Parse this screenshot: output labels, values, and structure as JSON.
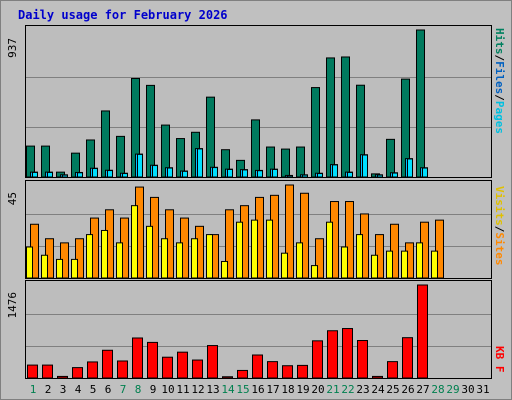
{
  "title": "Daily usage for February 2026",
  "colors": {
    "background": "#bdbdbd",
    "title": "#0000cc",
    "hits": "#007a5e",
    "files": "#00c0ff",
    "pages": "#00e0ff",
    "visits": "#ffff00",
    "sites": "#ff8800",
    "kbytes": "#ff0000",
    "weekend_label": "#00804f",
    "weekday_label": "#000000"
  },
  "legends": {
    "top": [
      {
        "text": "Hits",
        "color": "#00805f"
      },
      {
        "text": "/",
        "color": "#000000"
      },
      {
        "text": "Files",
        "color": "#0060c0"
      },
      {
        "text": "/",
        "color": "#000000"
      },
      {
        "text": "Pages",
        "color": "#00c0e0"
      }
    ],
    "middle": [
      {
        "text": "Visits",
        "color": "#e0c000"
      },
      {
        "text": "/",
        "color": "#000000"
      },
      {
        "text": "Sites",
        "color": "#ff8800"
      }
    ],
    "bottom": [
      {
        "text": "KB F",
        "color": "#ff0000"
      }
    ]
  },
  "chart_data": [
    {
      "type": "bar",
      "panel": "hits-files-pages",
      "y_label": "937",
      "ylim": [
        0,
        937
      ],
      "categories": [
        "1",
        "2",
        "3",
        "4",
        "5",
        "6",
        "7",
        "8",
        "9",
        "10",
        "11",
        "12",
        "13",
        "14",
        "15",
        "16",
        "17",
        "18",
        "19",
        "20",
        "21",
        "22",
        "23",
        "24",
        "25",
        "26",
        "27",
        "28",
        "29",
        "30",
        "31"
      ],
      "series": [
        {
          "name": "Hits",
          "values": [
            197,
            197,
            31,
            152,
            236,
            421,
            259,
            628,
            584,
            331,
            245,
            285,
            509,
            174,
            106,
            364,
            191,
            178,
            191,
            570,
            759,
            765,
            585,
            20,
            240,
            624,
            937,
            0,
            0,
            0,
            0
          ]
        },
        {
          "name": "Files",
          "values": [
            31,
            31,
            14,
            29,
            56,
            43,
            24,
            146,
            75,
            59,
            38,
            181,
            62,
            50,
            47,
            42,
            50,
            10,
            14,
            24,
            79,
            31,
            142,
            14,
            27,
            117,
            59,
            0,
            0,
            0,
            0
          ]
        },
        {
          "name": "Pages",
          "values": [
            29,
            29,
            12,
            27,
            54,
            41,
            22,
            144,
            73,
            57,
            36,
            179,
            60,
            48,
            45,
            40,
            48,
            8,
            12,
            22,
            77,
            29,
            140,
            12,
            25,
            115,
            57,
            0,
            0,
            0,
            0
          ]
        }
      ]
    },
    {
      "type": "bar",
      "panel": "visits-sites",
      "y_label": "45",
      "ylim": [
        0,
        45
      ],
      "categories": [
        "1",
        "2",
        "3",
        "4",
        "5",
        "6",
        "7",
        "8",
        "9",
        "10",
        "11",
        "12",
        "13",
        "14",
        "15",
        "16",
        "17",
        "18",
        "19",
        "20",
        "21",
        "22",
        "23",
        "24",
        "25",
        "26",
        "27",
        "28",
        "29",
        "30",
        "31"
      ],
      "series": [
        {
          "name": "Visits",
          "values": [
            15,
            11,
            9,
            9,
            21,
            23,
            17,
            35,
            25,
            19,
            17,
            19,
            21,
            8,
            27,
            28,
            28,
            12,
            17,
            6,
            27,
            15,
            21,
            11,
            13,
            13,
            17,
            13,
            0,
            0,
            0
          ]
        },
        {
          "name": "Sites",
          "values": [
            26,
            19,
            17,
            19,
            29,
            33,
            29,
            44,
            39,
            33,
            29,
            25,
            21,
            33,
            35,
            39,
            40,
            45,
            41,
            19,
            37,
            37,
            31,
            21,
            26,
            17,
            27,
            28,
            0,
            0,
            0
          ]
        }
      ]
    },
    {
      "type": "bar",
      "panel": "kbytes",
      "y_label": "1476",
      "ylim": [
        0,
        1476
      ],
      "categories": [
        "1",
        "2",
        "3",
        "4",
        "5",
        "6",
        "7",
        "8",
        "9",
        "10",
        "11",
        "12",
        "13",
        "14",
        "15",
        "16",
        "17",
        "18",
        "19",
        "20",
        "21",
        "22",
        "23",
        "24",
        "25",
        "26",
        "27",
        "28",
        "29",
        "30",
        "31"
      ],
      "series": [
        {
          "name": "KB F",
          "values": [
            205,
            205,
            25,
            165,
            255,
            440,
            270,
            635,
            565,
            330,
            410,
            285,
            515,
            20,
            120,
            365,
            260,
            195,
            200,
            590,
            750,
            785,
            595,
            25,
            260,
            640,
            1476,
            0,
            0,
            0,
            0
          ]
        }
      ]
    }
  ],
  "weekend_days": [
    "1",
    "7",
    "8",
    "14",
    "15",
    "21",
    "22",
    "28",
    "29"
  ]
}
